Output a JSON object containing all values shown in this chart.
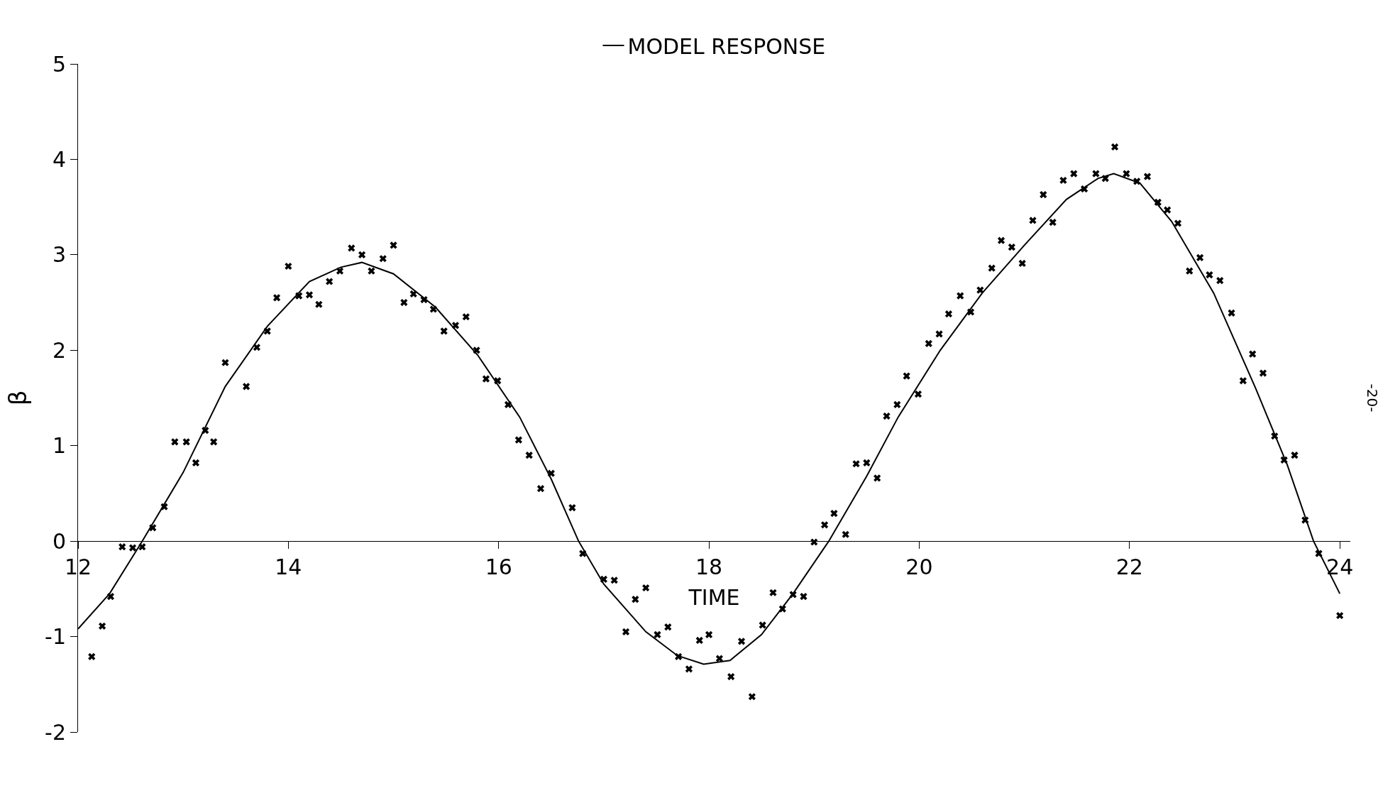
{
  "chart_data": {
    "type": "scatter",
    "xlabel": "TIME",
    "ylabel": "β",
    "xlim": [
      12,
      24.1
    ],
    "ylim": [
      -2,
      5
    ],
    "xticks": [
      12,
      14,
      16,
      18,
      20,
      22,
      24
    ],
    "yticks": [
      -2,
      -1,
      0,
      1,
      2,
      3,
      4,
      5
    ],
    "legend": "top",
    "annotations": [
      "-20-"
    ],
    "series": [
      {
        "marker": "cross",
        "color": "#000000",
        "x": [
          12.13,
          12.23,
          12.31,
          12.42,
          12.52,
          12.61,
          12.71,
          12.82,
          12.92,
          13.03,
          13.12,
          13.21,
          13.29,
          13.4,
          13.6,
          13.7,
          13.8,
          13.89,
          14.0,
          14.1,
          14.2,
          14.29,
          14.39,
          14.49,
          14.6,
          14.7,
          14.79,
          14.9,
          15.0,
          15.1,
          15.19,
          15.29,
          15.38,
          15.48,
          15.59,
          15.69,
          15.79,
          15.88,
          15.99,
          16.09,
          16.19,
          16.29,
          16.4,
          16.5,
          16.7,
          16.8,
          17.0,
          17.1,
          17.21,
          17.3,
          17.4,
          17.51,
          17.61,
          17.71,
          17.81,
          17.91,
          18.0,
          18.1,
          18.21,
          18.31,
          18.41,
          18.51,
          18.61,
          18.7,
          18.8,
          18.9,
          19.0,
          19.1,
          19.19,
          19.3,
          19.4,
          19.5,
          19.6,
          19.69,
          19.79,
          19.88,
          19.99,
          20.09,
          20.19,
          20.28,
          20.39,
          20.49,
          20.58,
          20.69,
          20.78,
          20.88,
          20.98,
          21.08,
          21.18,
          21.27,
          21.37,
          21.47,
          21.57,
          21.68,
          21.77,
          21.86,
          21.97,
          22.07,
          22.17,
          22.27,
          22.36,
          22.46,
          22.57,
          22.67,
          22.76,
          22.86,
          22.97,
          23.08,
          23.17,
          23.27,
          23.38,
          23.47,
          23.57,
          23.67,
          23.8,
          24.0
        ],
        "values": [
          -1.21,
          -0.89,
          -0.58,
          -0.06,
          -0.07,
          -0.06,
          0.14,
          0.36,
          1.04,
          1.04,
          0.82,
          1.16,
          1.04,
          1.87,
          1.62,
          2.03,
          2.2,
          2.55,
          2.88,
          2.57,
          2.58,
          2.48,
          2.72,
          2.83,
          3.07,
          3.0,
          2.83,
          2.96,
          3.1,
          2.5,
          2.59,
          2.53,
          2.43,
          2.2,
          2.26,
          2.35,
          2.0,
          1.7,
          1.68,
          1.43,
          1.06,
          0.9,
          0.55,
          0.71,
          0.35,
          -0.13,
          -0.4,
          -0.41,
          -0.95,
          -0.61,
          -0.49,
          -0.98,
          -0.9,
          -1.21,
          -1.34,
          -1.04,
          -0.98,
          -1.23,
          -1.42,
          -1.05,
          -1.63,
          -0.88,
          -0.54,
          -0.71,
          -0.56,
          -0.58,
          -0.01,
          0.17,
          0.29,
          0.07,
          0.81,
          0.82,
          0.66,
          1.31,
          1.43,
          1.73,
          1.54,
          2.07,
          2.17,
          2.38,
          2.57,
          2.4,
          2.63,
          2.86,
          3.15,
          3.08,
          2.91,
          3.36,
          3.63,
          3.34,
          3.78,
          3.85,
          3.69,
          3.85,
          3.8,
          4.13,
          3.85,
          3.77,
          3.82,
          3.55,
          3.47,
          3.33,
          2.83,
          2.97,
          2.79,
          2.73,
          2.39,
          1.68,
          1.96,
          1.76,
          1.1,
          0.85,
          0.9,
          0.22,
          -0.13,
          -0.78
        ]
      },
      {
        "type": "line",
        "name": "MODEL RESPONSE",
        "color": "#000000",
        "marker": "none",
        "line_style": "solid",
        "x": [
          12,
          12.3,
          12.6,
          13.0,
          13.4,
          13.8,
          14.2,
          14.5,
          14.7,
          15.0,
          15.4,
          15.8,
          16.2,
          16.5,
          16.76,
          17.0,
          17.4,
          17.7,
          17.95,
          18.2,
          18.5,
          18.8,
          19.14,
          19.5,
          19.8,
          20.2,
          20.6,
          21.0,
          21.4,
          21.7,
          21.85,
          22.1,
          22.4,
          22.8,
          23.2,
          23.5,
          23.75,
          24.0
        ],
        "values": [
          -0.92,
          -0.55,
          -0.02,
          0.72,
          1.62,
          2.25,
          2.72,
          2.87,
          2.92,
          2.8,
          2.45,
          1.95,
          1.3,
          0.65,
          0,
          -0.45,
          -0.95,
          -1.2,
          -1.29,
          -1.25,
          -0.98,
          -0.55,
          0,
          0.68,
          1.3,
          2.0,
          2.6,
          3.1,
          3.58,
          3.8,
          3.85,
          3.75,
          3.35,
          2.6,
          1.6,
          0.8,
          0,
          -0.55
        ]
      }
    ]
  }
}
